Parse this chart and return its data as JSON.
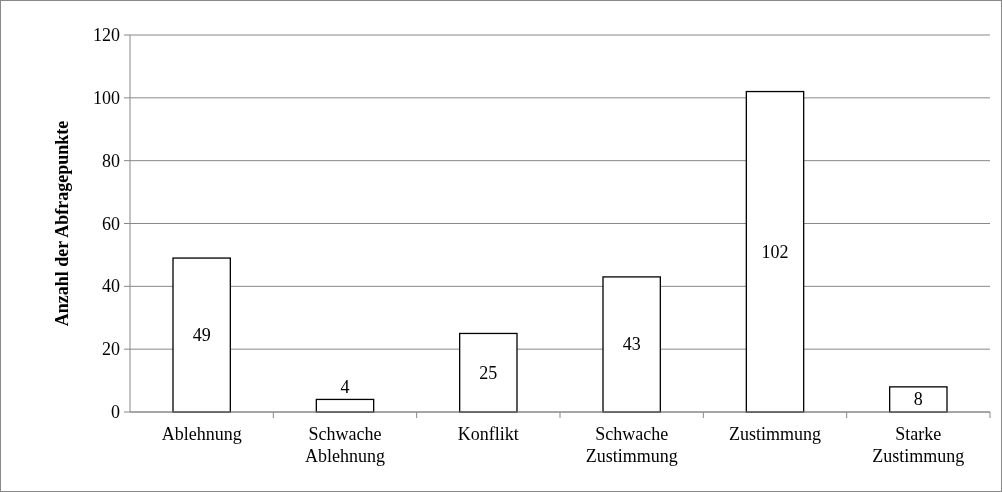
{
  "chart_data": {
    "type": "bar",
    "ylabel": "Anzahl der Abfragepunkte",
    "categories": [
      "Ablehnung",
      "Schwache Ablehnung",
      "Konflikt",
      "Schwache Zustimmung",
      "Zustimmung",
      "Starke Zustimmung"
    ],
    "values": [
      49,
      4,
      25,
      43,
      102,
      8
    ],
    "color": "#ffffff",
    "ylim": [
      0,
      120
    ],
    "yticks": [
      0,
      20,
      40,
      60,
      80,
      100,
      120
    ],
    "grid": "y",
    "data_labels": true
  }
}
